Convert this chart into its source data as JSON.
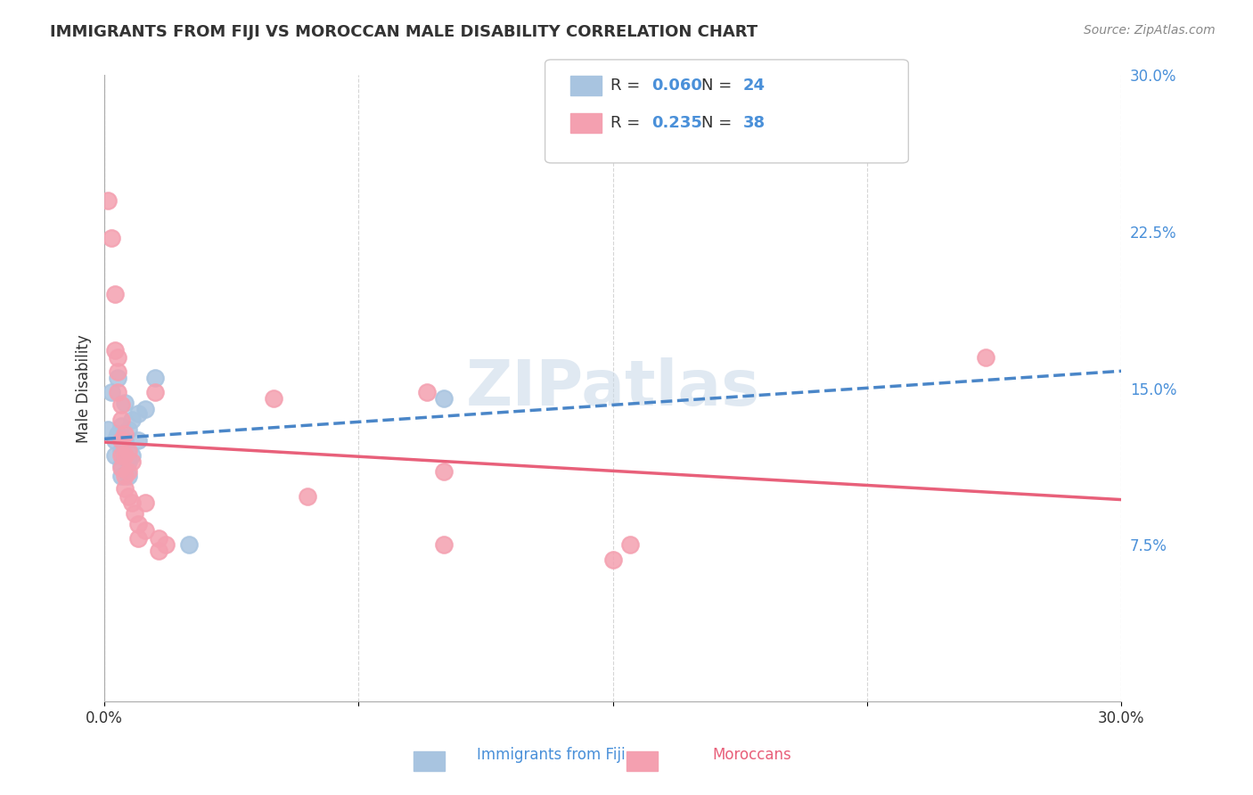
{
  "title": "IMMIGRANTS FROM FIJI VS MOROCCAN MALE DISABILITY CORRELATION CHART",
  "source": "Source: ZipAtlas.com",
  "xlabel_bottom_left": "0.0%",
  "xlabel_bottom_right": "30.0%",
  "ylabel": "Male Disability",
  "right_axis_labels": [
    "30.0%",
    "22.5%",
    "15.0%",
    "7.5%"
  ],
  "bottom_labels": [
    "Immigrants from Fiji",
    "Moroccans"
  ],
  "legend": {
    "fiji_R": "0.060",
    "fiji_N": "24",
    "morocco_R": "0.235",
    "morocco_N": "38"
  },
  "fiji_color": "#a8c4e0",
  "morocco_color": "#f4a0b0",
  "fiji_line_color": "#4a86c8",
  "morocco_line_color": "#e8607a",
  "watermark": "ZIPatlas",
  "xlim": [
    0.0,
    0.3
  ],
  "ylim": [
    0.0,
    0.3
  ],
  "fiji_points": [
    [
      0.001,
      0.13
    ],
    [
      0.002,
      0.148
    ],
    [
      0.003,
      0.125
    ],
    [
      0.003,
      0.118
    ],
    [
      0.004,
      0.155
    ],
    [
      0.004,
      0.128
    ],
    [
      0.005,
      0.132
    ],
    [
      0.005,
      0.12
    ],
    [
      0.005,
      0.113
    ],
    [
      0.005,
      0.108
    ],
    [
      0.006,
      0.143
    ],
    [
      0.006,
      0.125
    ],
    [
      0.006,
      0.118
    ],
    [
      0.007,
      0.13
    ],
    [
      0.007,
      0.115
    ],
    [
      0.007,
      0.108
    ],
    [
      0.008,
      0.135
    ],
    [
      0.008,
      0.118
    ],
    [
      0.01,
      0.138
    ],
    [
      0.01,
      0.125
    ],
    [
      0.012,
      0.14
    ],
    [
      0.015,
      0.155
    ],
    [
      0.025,
      0.075
    ],
    [
      0.1,
      0.145
    ]
  ],
  "morocco_points": [
    [
      0.001,
      0.24
    ],
    [
      0.002,
      0.222
    ],
    [
      0.003,
      0.195
    ],
    [
      0.003,
      0.168
    ],
    [
      0.004,
      0.165
    ],
    [
      0.004,
      0.158
    ],
    [
      0.004,
      0.148
    ],
    [
      0.005,
      0.142
    ],
    [
      0.005,
      0.135
    ],
    [
      0.005,
      0.125
    ],
    [
      0.005,
      0.118
    ],
    [
      0.005,
      0.112
    ],
    [
      0.006,
      0.128
    ],
    [
      0.006,
      0.118
    ],
    [
      0.006,
      0.108
    ],
    [
      0.006,
      0.102
    ],
    [
      0.007,
      0.12
    ],
    [
      0.007,
      0.11
    ],
    [
      0.007,
      0.098
    ],
    [
      0.008,
      0.115
    ],
    [
      0.008,
      0.095
    ],
    [
      0.009,
      0.09
    ],
    [
      0.01,
      0.085
    ],
    [
      0.01,
      0.078
    ],
    [
      0.012,
      0.095
    ],
    [
      0.012,
      0.082
    ],
    [
      0.015,
      0.148
    ],
    [
      0.016,
      0.078
    ],
    [
      0.016,
      0.072
    ],
    [
      0.018,
      0.075
    ],
    [
      0.05,
      0.145
    ],
    [
      0.06,
      0.098
    ],
    [
      0.095,
      0.148
    ],
    [
      0.1,
      0.11
    ],
    [
      0.1,
      0.075
    ],
    [
      0.15,
      0.068
    ],
    [
      0.155,
      0.075
    ],
    [
      0.26,
      0.165
    ]
  ]
}
